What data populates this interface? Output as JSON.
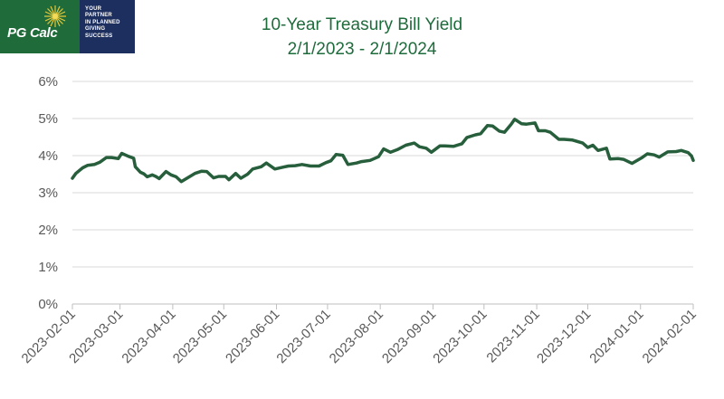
{
  "logo": {
    "brand": "PG Calc",
    "tagline": [
      "YOUR",
      "PARTNER",
      "IN PLANNED",
      "GIVING",
      "SUCCESS"
    ]
  },
  "colors": {
    "line": "#275e3b",
    "title": "#1e6b3c",
    "brand_green": "#1f6b3a",
    "brand_navy": "#1d2f5e"
  },
  "chart_data": {
    "type": "line",
    "title": "10-Year Treasury Bill Yield",
    "subtitle": "2/1/2023 - 2/1/2024",
    "ylim": [
      0,
      6
    ],
    "y_ticks": [
      "0%",
      "1%",
      "2%",
      "3%",
      "4%",
      "5%",
      "6%"
    ],
    "y_tick_values": [
      0,
      1,
      2,
      3,
      4,
      5,
      6
    ],
    "x_ticks": [
      "2023-02-01",
      "2023-03-01",
      "2023-04-01",
      "2023-05-01",
      "2023-06-01",
      "2023-07-01",
      "2023-08-01",
      "2023-09-01",
      "2023-10-01",
      "2023-11-01",
      "2023-12-01",
      "2024-01-01",
      "2024-02-01"
    ],
    "grid": "horizontal",
    "series": [
      {
        "points": [
          [
            "2023-02-01",
            3.39
          ],
          [
            "2023-02-03",
            3.52
          ],
          [
            "2023-02-07",
            3.67
          ],
          [
            "2023-02-10",
            3.74
          ],
          [
            "2023-02-14",
            3.76
          ],
          [
            "2023-02-17",
            3.82
          ],
          [
            "2023-02-21",
            3.95
          ],
          [
            "2023-02-24",
            3.95
          ],
          [
            "2023-02-28",
            3.92
          ],
          [
            "2023-03-02",
            4.06
          ],
          [
            "2023-03-06",
            3.98
          ],
          [
            "2023-03-09",
            3.93
          ],
          [
            "2023-03-10",
            3.7
          ],
          [
            "2023-03-13",
            3.55
          ],
          [
            "2023-03-15",
            3.51
          ],
          [
            "2023-03-17",
            3.43
          ],
          [
            "2023-03-20",
            3.48
          ],
          [
            "2023-03-22",
            3.44
          ],
          [
            "2023-03-24",
            3.38
          ],
          [
            "2023-03-28",
            3.57
          ],
          [
            "2023-03-31",
            3.48
          ],
          [
            "2023-04-03",
            3.43
          ],
          [
            "2023-04-06",
            3.3
          ],
          [
            "2023-04-10",
            3.41
          ],
          [
            "2023-04-14",
            3.52
          ],
          [
            "2023-04-18",
            3.58
          ],
          [
            "2023-04-21",
            3.57
          ],
          [
            "2023-04-25",
            3.4
          ],
          [
            "2023-04-28",
            3.44
          ],
          [
            "2023-05-02",
            3.44
          ],
          [
            "2023-05-04",
            3.35
          ],
          [
            "2023-05-08",
            3.52
          ],
          [
            "2023-05-11",
            3.39
          ],
          [
            "2023-05-15",
            3.5
          ],
          [
            "2023-05-18",
            3.64
          ],
          [
            "2023-05-23",
            3.7
          ],
          [
            "2023-05-26",
            3.8
          ],
          [
            "2023-05-31",
            3.64
          ],
          [
            "2023-06-05",
            3.69
          ],
          [
            "2023-06-08",
            3.72
          ],
          [
            "2023-06-12",
            3.73
          ],
          [
            "2023-06-16",
            3.76
          ],
          [
            "2023-06-21",
            3.72
          ],
          [
            "2023-06-26",
            3.72
          ],
          [
            "2023-06-30",
            3.81
          ],
          [
            "2023-07-03",
            3.86
          ],
          [
            "2023-07-06",
            4.03
          ],
          [
            "2023-07-10",
            4.01
          ],
          [
            "2023-07-13",
            3.76
          ],
          [
            "2023-07-18",
            3.8
          ],
          [
            "2023-07-21",
            3.84
          ],
          [
            "2023-07-26",
            3.87
          ],
          [
            "2023-07-31",
            3.97
          ],
          [
            "2023-08-03",
            4.18
          ],
          [
            "2023-08-07",
            4.09
          ],
          [
            "2023-08-11",
            4.16
          ],
          [
            "2023-08-16",
            4.28
          ],
          [
            "2023-08-21",
            4.34
          ],
          [
            "2023-08-24",
            4.24
          ],
          [
            "2023-08-28",
            4.2
          ],
          [
            "2023-08-31",
            4.09
          ],
          [
            "2023-09-05",
            4.26
          ],
          [
            "2023-09-08",
            4.26
          ],
          [
            "2023-09-13",
            4.25
          ],
          [
            "2023-09-18",
            4.32
          ],
          [
            "2023-09-21",
            4.49
          ],
          [
            "2023-09-26",
            4.56
          ],
          [
            "2023-09-29",
            4.59
          ],
          [
            "2023-10-03",
            4.81
          ],
          [
            "2023-10-06",
            4.8
          ],
          [
            "2023-10-10",
            4.66
          ],
          [
            "2023-10-13",
            4.63
          ],
          [
            "2023-10-17",
            4.85
          ],
          [
            "2023-10-19",
            4.98
          ],
          [
            "2023-10-23",
            4.86
          ],
          [
            "2023-10-26",
            4.85
          ],
          [
            "2023-10-31",
            4.88
          ],
          [
            "2023-11-02",
            4.67
          ],
          [
            "2023-11-06",
            4.67
          ],
          [
            "2023-11-09",
            4.63
          ],
          [
            "2023-11-14",
            4.44
          ],
          [
            "2023-11-17",
            4.44
          ],
          [
            "2023-11-22",
            4.42
          ],
          [
            "2023-11-28",
            4.34
          ],
          [
            "2023-12-01",
            4.22
          ],
          [
            "2023-12-04",
            4.28
          ],
          [
            "2023-12-07",
            4.14
          ],
          [
            "2023-12-12",
            4.2
          ],
          [
            "2023-12-14",
            3.91
          ],
          [
            "2023-12-19",
            3.92
          ],
          [
            "2023-12-22",
            3.9
          ],
          [
            "2023-12-27",
            3.79
          ],
          [
            "2024-01-02",
            3.95
          ],
          [
            "2024-01-05",
            4.05
          ],
          [
            "2024-01-09",
            4.02
          ],
          [
            "2024-01-12",
            3.96
          ],
          [
            "2024-01-17",
            4.1
          ],
          [
            "2024-01-22",
            4.11
          ],
          [
            "2024-01-25",
            4.14
          ],
          [
            "2024-01-29",
            4.08
          ],
          [
            "2024-01-31",
            3.99
          ],
          [
            "2024-02-01",
            3.87
          ]
        ]
      }
    ]
  }
}
